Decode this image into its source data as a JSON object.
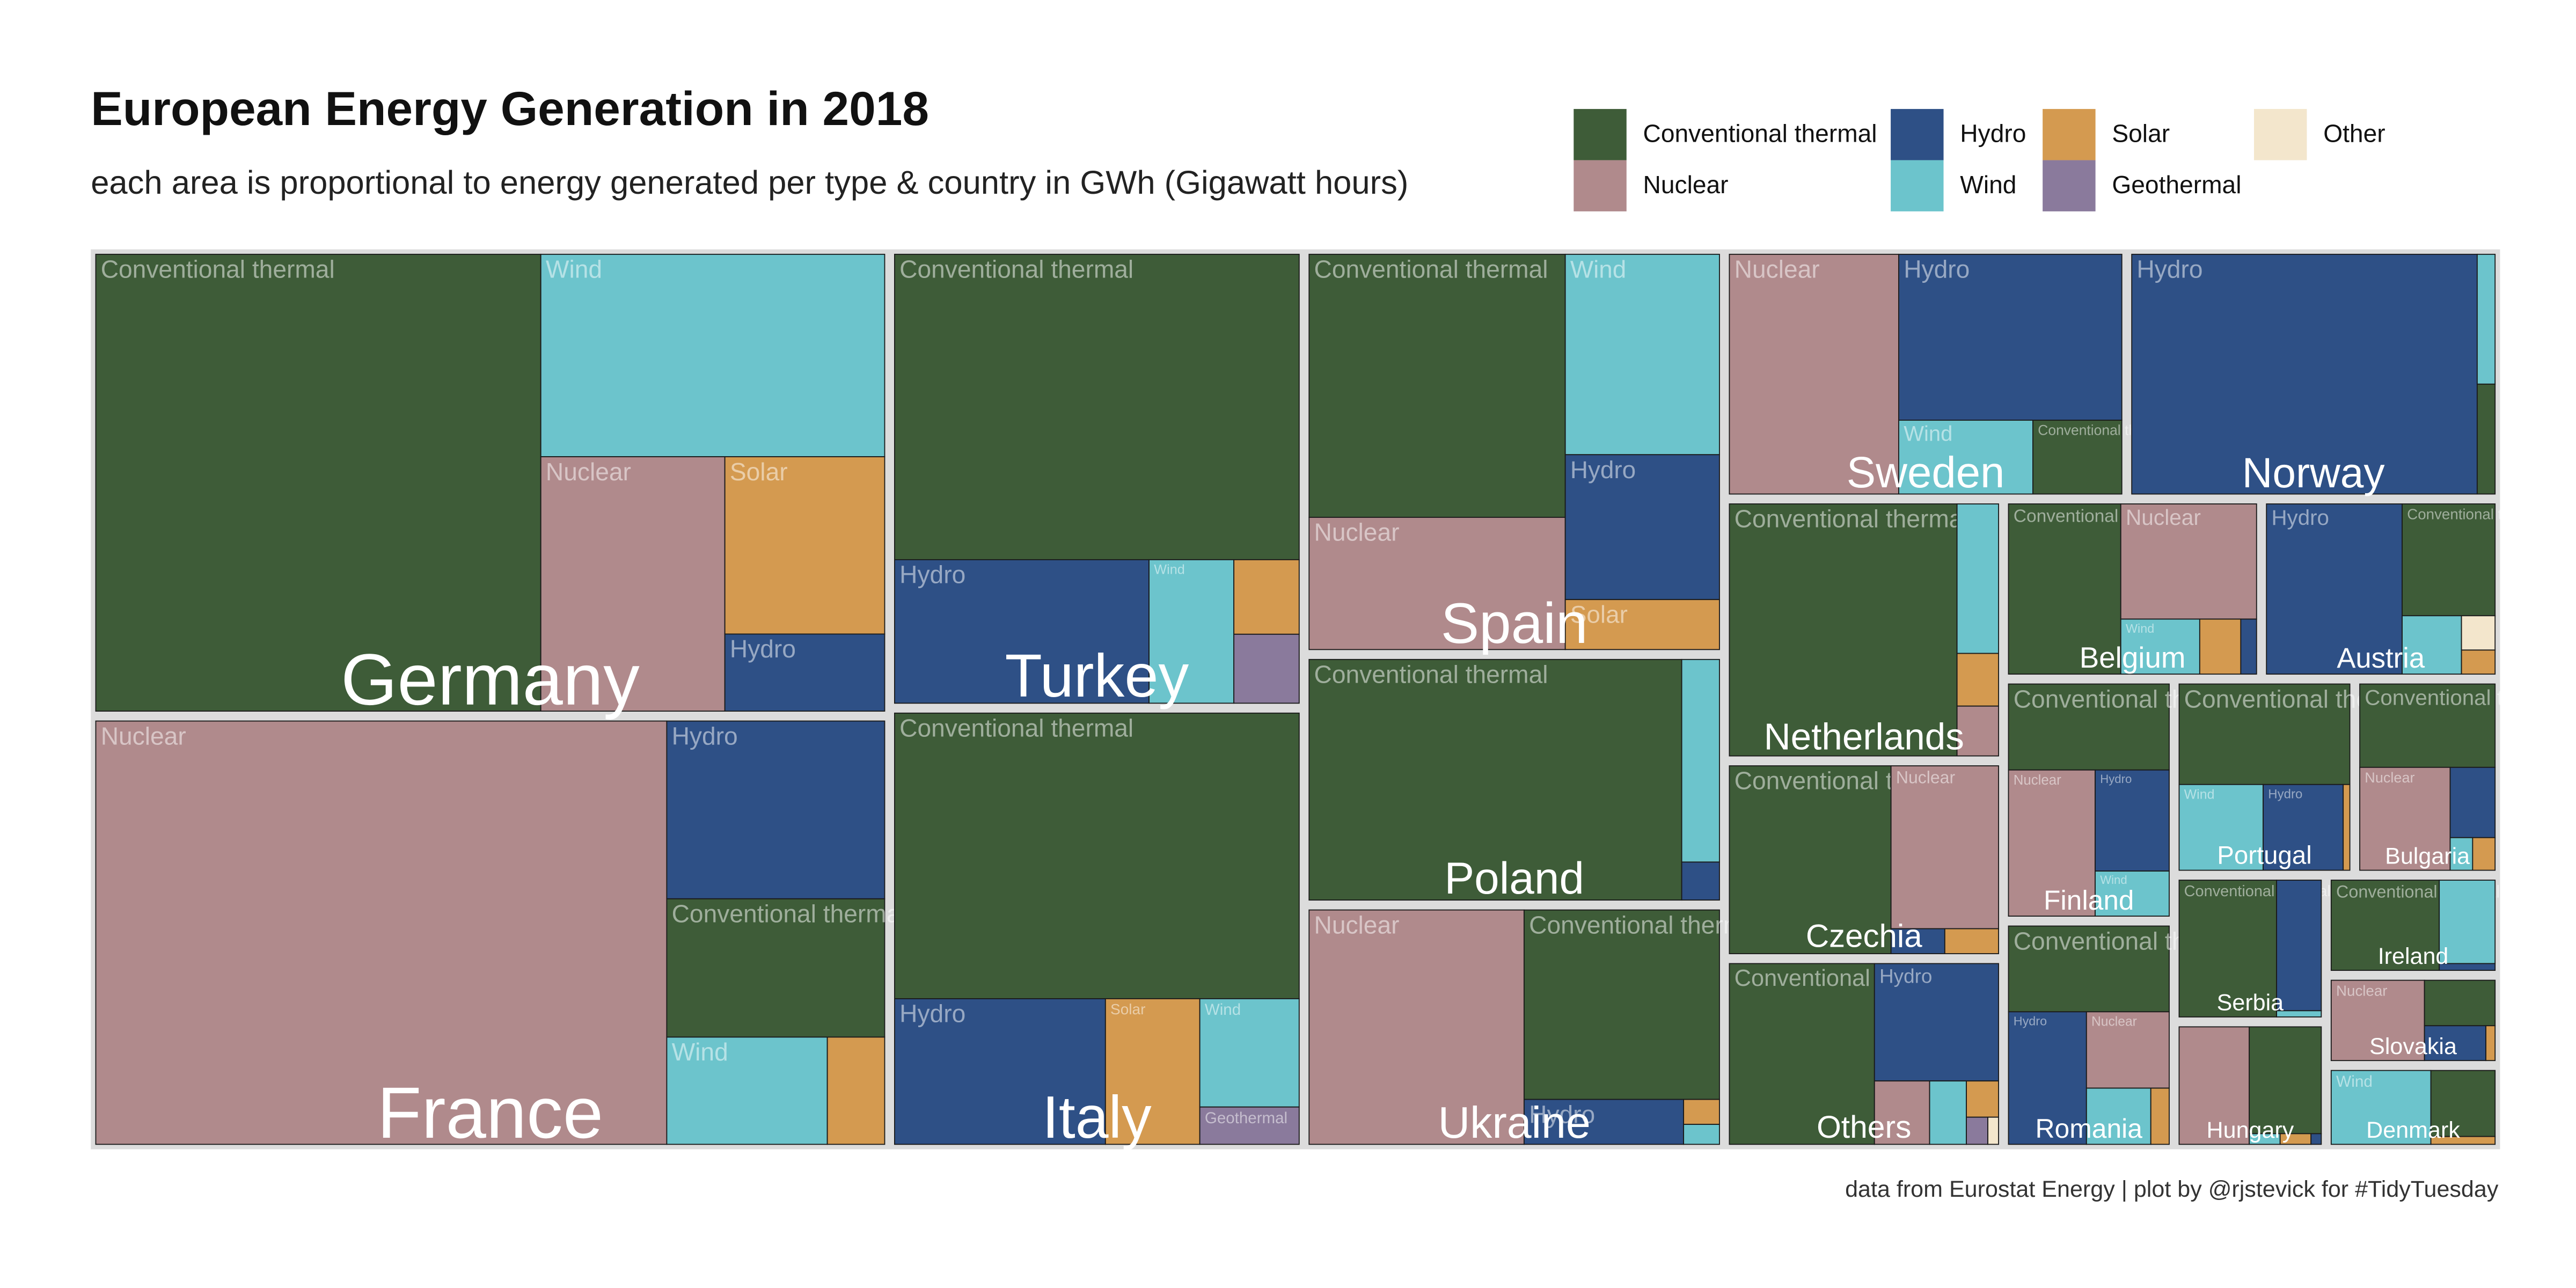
{
  "chart_data": {
    "type": "treemap",
    "title": "European Energy Generation in 2018",
    "subtitle": "each area is proportional to energy generated per type & country in GWh (Gigawatt hours)",
    "caption": "data from Eurostat Energy | plot by @rjstevick for #TidyTuesday",
    "categories": [
      "France",
      "Germany",
      "Norway",
      "Poland",
      "Spain",
      "Turkey",
      "Ukraine",
      "Sweden",
      "Italy",
      "Netherlands",
      "Others",
      "Czechia",
      "Finland",
      "Belgium",
      "Romania",
      "Austria",
      "Hungary",
      "Serbia",
      "Portugal",
      "Bulgaria",
      "Denmark",
      "Ireland",
      "Slovakia"
    ],
    "series": [
      {
        "name": "Conventional thermal",
        "color": "#3e5c38",
        "values": [
          49000,
          330000,
          3300,
          150000,
          111000,
          203000,
          62000,
          11000,
          190000,
          97000,
          45000,
          52000,
          24000,
          33000,
          24000,
          18000,
          14000,
          24000,
          30000,
          20000,
          8000,
          18000,
          6000
        ]
      },
      {
        "name": "Nuclear",
        "color": "#b08a8c",
        "values": [
          393000,
          76000,
          null,
          null,
          55800,
          null,
          84400,
          68000,
          null,
          3500,
          6000,
          30000,
          22000,
          27000,
          11000,
          null,
          15000,
          null,
          null,
          16500,
          null,
          null,
          14000
        ]
      },
      {
        "name": "Hydro",
        "color": "#2e5086",
        "values": [
          63000,
          20000,
          139000,
          2400,
          36800,
          60000,
          12000,
          62000,
          50500,
          null,
          25000,
          2300,
          13000,
          1500,
          18000,
          40000,
          200,
          10500,
          12000,
          5600,
          null,
          700,
          4000
        ]
      },
      {
        "name": "Wind",
        "color": "#6cc4cc",
        "values": [
          28000,
          113000,
          3900,
          12800,
          50900,
          20000,
          1200,
          16600,
          17700,
          10500,
          4000,
          null,
          5800,
          7500,
          6300,
          6000,
          600,
          500,
          12600,
          1300,
          13900,
          8600,
          null
        ]
      },
      {
        "name": "Solar",
        "color": "#d49a50",
        "values": [
          10000,
          46000,
          null,
          null,
          12700,
          8000,
          1500,
          null,
          22600,
          3700,
          2000,
          2300,
          null,
          3900,
          1800,
          1400,
          600,
          null,
          1000,
          1300,
          950,
          null,
          600
        ]
      },
      {
        "name": "Geothermal",
        "color": "#8a7a9c",
        "values": [
          null,
          null,
          null,
          null,
          null,
          7400,
          null,
          null,
          6100,
          null,
          1000,
          null,
          null,
          null,
          null,
          null,
          null,
          null,
          null,
          null,
          null,
          null,
          null
        ]
      },
      {
        "name": "Other",
        "color": "#f3e6cc",
        "values": [
          null,
          null,
          null,
          null,
          null,
          null,
          null,
          null,
          null,
          null,
          500,
          null,
          null,
          null,
          null,
          2000,
          null,
          null,
          null,
          null,
          null,
          null,
          null
        ]
      }
    ],
    "legend_order": [
      0,
      2,
      4,
      6,
      1,
      3,
      5
    ]
  }
}
